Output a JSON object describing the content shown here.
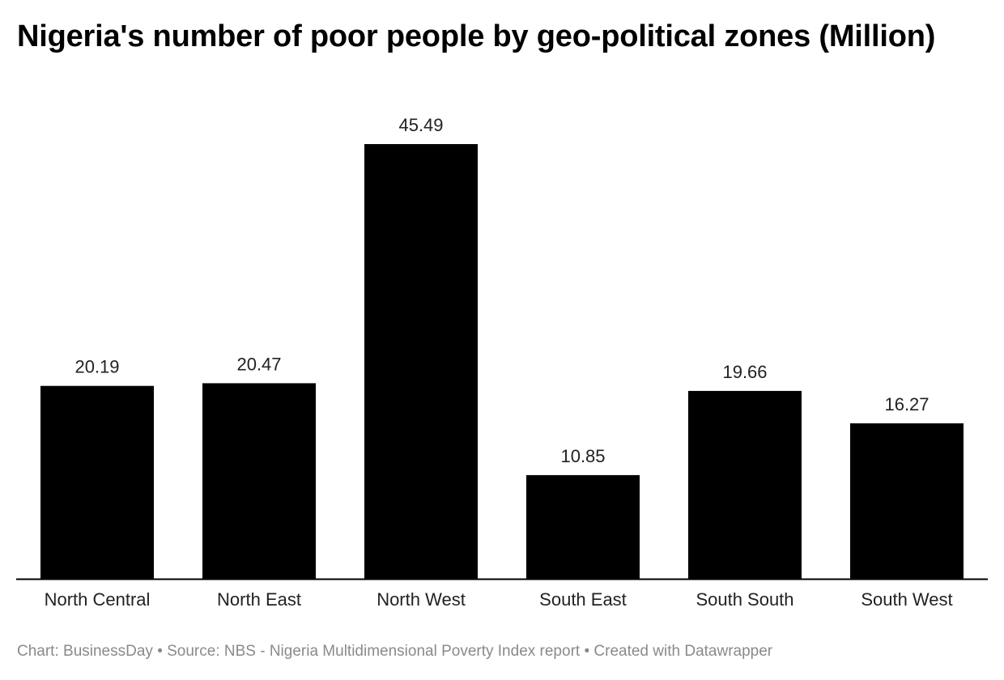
{
  "title": "Nigeria's number of poor people by geo-political zones (Million)",
  "footer": {
    "chart_credit": "Chart: BusinessDay",
    "source": "Source: NBS - Nigeria Multidimensional Poverty Index report",
    "created_with": "Created with Datawrapper",
    "separator": "•"
  },
  "colors": {
    "bar": "#000000",
    "baseline": "#000000",
    "footer_text": "#8a8a8a"
  },
  "chart_data": {
    "type": "bar",
    "title": "Nigeria's number of poor people by geo-political zones (Million)",
    "categories": [
      "North Central",
      "North East",
      "North West",
      "South East",
      "South South",
      "South West"
    ],
    "values": [
      20.19,
      20.47,
      45.49,
      10.85,
      19.66,
      16.27
    ],
    "value_labels": [
      "20.19",
      "20.47",
      "45.49",
      "10.85",
      "19.66",
      "16.27"
    ],
    "xlabel": "",
    "ylabel": "",
    "ylim": [
      0,
      45.49
    ],
    "grid": false,
    "legend": "none"
  }
}
